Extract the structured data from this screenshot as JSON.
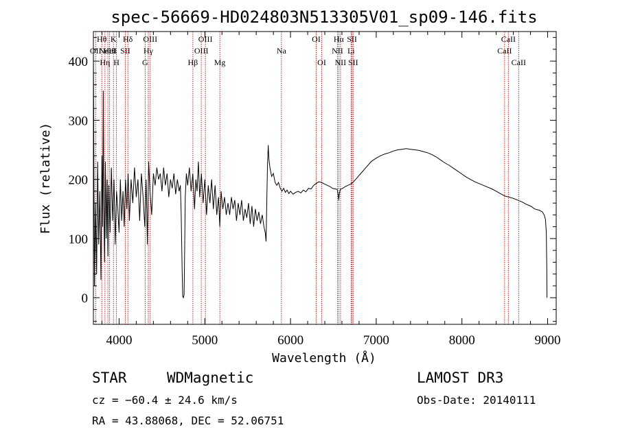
{
  "chart_data": {
    "type": "line",
    "title": "spec-56669-HD024803N513305V01_sp09-146.fits",
    "xlabel": "Wavelength (Å)",
    "ylabel": "Flux (relative)",
    "xlim": [
      3700,
      9100
    ],
    "ylim": [
      -45,
      450
    ],
    "x_ticks": [
      4000,
      5000,
      6000,
      7000,
      8000,
      9000
    ],
    "y_ticks": [
      0,
      100,
      200,
      300,
      400
    ],
    "series": [
      {
        "name": "flux",
        "points": [
          [
            3700,
            420
          ],
          [
            3712,
            20
          ],
          [
            3725,
            160
          ],
          [
            3738,
            40
          ],
          [
            3750,
            230
          ],
          [
            3762,
            90
          ],
          [
            3775,
            180
          ],
          [
            3788,
            30
          ],
          [
            3800,
            240
          ],
          [
            3808,
            120
          ],
          [
            3815,
            350
          ],
          [
            3822,
            160
          ],
          [
            3830,
            60
          ],
          [
            3840,
            230
          ],
          [
            3850,
            100
          ],
          [
            3860,
            200
          ],
          [
            3870,
            70
          ],
          [
            3880,
            190
          ],
          [
            3895,
            110
          ],
          [
            3910,
            220
          ],
          [
            3925,
            130
          ],
          [
            3940,
            200
          ],
          [
            3955,
            90
          ],
          [
            3970,
            180
          ],
          [
            3985,
            150
          ],
          [
            4000,
            110
          ],
          [
            4015,
            200
          ],
          [
            4030,
            130
          ],
          [
            4045,
            180
          ],
          [
            4060,
            120
          ],
          [
            4075,
            200
          ],
          [
            4090,
            150
          ],
          [
            4105,
            210
          ],
          [
            4120,
            130
          ],
          [
            4140,
            200
          ],
          [
            4160,
            160
          ],
          [
            4180,
            220
          ],
          [
            4200,
            170
          ],
          [
            4220,
            200
          ],
          [
            4240,
            130
          ],
          [
            4260,
            210
          ],
          [
            4280,
            170
          ],
          [
            4300,
            120
          ],
          [
            4315,
            200
          ],
          [
            4330,
            90
          ],
          [
            4345,
            230
          ],
          [
            4360,
            180
          ],
          [
            4380,
            140
          ],
          [
            4400,
            210
          ],
          [
            4420,
            190
          ],
          [
            4440,
            220
          ],
          [
            4460,
            200
          ],
          [
            4480,
            210
          ],
          [
            4500,
            180
          ],
          [
            4520,
            220
          ],
          [
            4540,
            190
          ],
          [
            4560,
            210
          ],
          [
            4580,
            170
          ],
          [
            4600,
            200
          ],
          [
            4620,
            185
          ],
          [
            4640,
            210
          ],
          [
            4660,
            175
          ],
          [
            4680,
            200
          ],
          [
            4700,
            180
          ],
          [
            4715,
            190
          ],
          [
            4725,
            140
          ],
          [
            4735,
            50
          ],
          [
            4742,
            2
          ],
          [
            4750,
            0
          ],
          [
            4758,
            5
          ],
          [
            4765,
            80
          ],
          [
            4772,
            170
          ],
          [
            4785,
            210
          ],
          [
            4800,
            190
          ],
          [
            4820,
            220
          ],
          [
            4840,
            180
          ],
          [
            4860,
            210
          ],
          [
            4880,
            150
          ],
          [
            4895,
            200
          ],
          [
            4910,
            180
          ],
          [
            4925,
            230
          ],
          [
            4940,
            170
          ],
          [
            4960,
            210
          ],
          [
            4980,
            160
          ],
          [
            5000,
            200
          ],
          [
            5020,
            140
          ],
          [
            5040,
            190
          ],
          [
            5060,
            160
          ],
          [
            5080,
            200
          ],
          [
            5100,
            150
          ],
          [
            5120,
            190
          ],
          [
            5140,
            140
          ],
          [
            5160,
            170
          ],
          [
            5175,
            120
          ],
          [
            5190,
            180
          ],
          [
            5210,
            150
          ],
          [
            5230,
            170
          ],
          [
            5250,
            140
          ],
          [
            5270,
            160
          ],
          [
            5290,
            140
          ],
          [
            5310,
            170
          ],
          [
            5330,
            150
          ],
          [
            5350,
            165
          ],
          [
            5370,
            130
          ],
          [
            5390,
            160
          ],
          [
            5410,
            140
          ],
          [
            5430,
            165
          ],
          [
            5450,
            130
          ],
          [
            5470,
            150
          ],
          [
            5490,
            135
          ],
          [
            5510,
            160
          ],
          [
            5530,
            125
          ],
          [
            5550,
            155
          ],
          [
            5570,
            120
          ],
          [
            5590,
            150
          ],
          [
            5610,
            130
          ],
          [
            5630,
            145
          ],
          [
            5650,
            125
          ],
          [
            5670,
            140
          ],
          [
            5690,
            120
          ],
          [
            5705,
            110
          ],
          [
            5715,
            95
          ],
          [
            5725,
            180
          ],
          [
            5732,
            225
          ],
          [
            5740,
            258
          ],
          [
            5748,
            235
          ],
          [
            5760,
            220
          ],
          [
            5780,
            205
          ],
          [
            5800,
            210
          ],
          [
            5820,
            195
          ],
          [
            5840,
            190
          ],
          [
            5860,
            195
          ],
          [
            5880,
            185
          ],
          [
            5900,
            180
          ],
          [
            5920,
            185
          ],
          [
            5940,
            178
          ],
          [
            5960,
            182
          ],
          [
            5980,
            176
          ],
          [
            6000,
            180
          ],
          [
            6030,
            175
          ],
          [
            6060,
            178
          ],
          [
            6090,
            180
          ],
          [
            6120,
            177
          ],
          [
            6150,
            182
          ],
          [
            6180,
            179
          ],
          [
            6210,
            185
          ],
          [
            6240,
            184
          ],
          [
            6270,
            190
          ],
          [
            6300,
            193
          ],
          [
            6330,
            196
          ],
          [
            6360,
            195
          ],
          [
            6400,
            192
          ],
          [
            6430,
            190
          ],
          [
            6460,
            188
          ],
          [
            6490,
            185
          ],
          [
            6520,
            184
          ],
          [
            6545,
            183
          ],
          [
            6555,
            175
          ],
          [
            6563,
            165
          ],
          [
            6570,
            175
          ],
          [
            6580,
            183
          ],
          [
            6610,
            185
          ],
          [
            6640,
            188
          ],
          [
            6670,
            190
          ],
          [
            6700,
            192
          ],
          [
            6730,
            195
          ],
          [
            6760,
            200
          ],
          [
            6790,
            205
          ],
          [
            6820,
            210
          ],
          [
            6850,
            215
          ],
          [
            6880,
            220
          ],
          [
            6910,
            225
          ],
          [
            6940,
            230
          ],
          [
            6970,
            233
          ],
          [
            7000,
            236
          ],
          [
            7050,
            240
          ],
          [
            7100,
            243
          ],
          [
            7150,
            245
          ],
          [
            7200,
            248
          ],
          [
            7250,
            250
          ],
          [
            7300,
            251
          ],
          [
            7350,
            252
          ],
          [
            7400,
            251
          ],
          [
            7450,
            250
          ],
          [
            7500,
            249
          ],
          [
            7550,
            247
          ],
          [
            7600,
            245
          ],
          [
            7650,
            242
          ],
          [
            7700,
            238
          ],
          [
            7750,
            233
          ],
          [
            7800,
            228
          ],
          [
            7850,
            224
          ],
          [
            7900,
            219
          ],
          [
            7950,
            214
          ],
          [
            8000,
            209
          ],
          [
            8050,
            204
          ],
          [
            8100,
            200
          ],
          [
            8150,
            196
          ],
          [
            8200,
            193
          ],
          [
            8250,
            190
          ],
          [
            8300,
            187
          ],
          [
            8350,
            184
          ],
          [
            8400,
            180
          ],
          [
            8450,
            176
          ],
          [
            8500,
            172
          ],
          [
            8550,
            170
          ],
          [
            8600,
            168
          ],
          [
            8650,
            165
          ],
          [
            8700,
            162
          ],
          [
            8750,
            158
          ],
          [
            8800,
            155
          ],
          [
            8850,
            150
          ],
          [
            8900,
            148
          ],
          [
            8940,
            145
          ],
          [
            8960,
            140
          ],
          [
            8975,
            132
          ],
          [
            8985,
            110
          ],
          [
            8990,
            50
          ],
          [
            8993,
            0
          ]
        ]
      }
    ],
    "line_markers": [
      {
        "wl": 3726,
        "label": "OII",
        "row": 1
      },
      {
        "wl": 3798,
        "label": "Hθ",
        "row": 0
      },
      {
        "wl": 3835,
        "label": "Hη",
        "row": 2
      },
      {
        "wl": 3869,
        "label": "NeIII",
        "row": 1
      },
      {
        "wl": 3889,
        "label": "HeI",
        "row": 1
      },
      {
        "wl": 3934,
        "label": "K",
        "row": 0
      },
      {
        "wl": 3969,
        "label": "H",
        "row": 2
      },
      {
        "wl": 4072,
        "label": "SII",
        "row": 1
      },
      {
        "wl": 4102,
        "label": "Hδ",
        "row": 0
      },
      {
        "wl": 4304,
        "label": "G",
        "row": 2
      },
      {
        "wl": 4341,
        "label": "Hγ",
        "row": 1
      },
      {
        "wl": 4363,
        "label": "OIII",
        "row": 0
      },
      {
        "wl": 4861,
        "label": "Hβ",
        "row": 2
      },
      {
        "wl": 4959,
        "label": "OIII",
        "row": 1
      },
      {
        "wl": 5007,
        "label": "OIII",
        "row": 0
      },
      {
        "wl": 5175,
        "label": "Mg",
        "row": 2
      },
      {
        "wl": 5894,
        "label": "Na",
        "row": 1
      },
      {
        "wl": 6300,
        "label": "OI",
        "row": 0
      },
      {
        "wl": 6364,
        "label": "OI",
        "row": 2
      },
      {
        "wl": 6548,
        "label": "NII",
        "row": 1
      },
      {
        "wl": 6563,
        "label": "Hα",
        "row": 0
      },
      {
        "wl": 6583,
        "label": "NII",
        "row": 2
      },
      {
        "wl": 6707,
        "label": "Li",
        "row": 1
      },
      {
        "wl": 6717,
        "label": "SII",
        "row": 0
      },
      {
        "wl": 6731,
        "label": "SII",
        "row": 2
      },
      {
        "wl": 8498,
        "label": "CaII",
        "row": 1
      },
      {
        "wl": 8542,
        "label": "CaII",
        "row": 0
      },
      {
        "wl": 8662,
        "label": "CaII",
        "row": 2
      }
    ]
  },
  "info": {
    "object_class": "STAR",
    "subclass": "WDMagnetic",
    "survey": "LAMOST DR3",
    "cz": "cz = −60.4 ± 24.6 km/s",
    "obs_date": "Obs-Date: 20140111",
    "coords": "RA =  43.88068, DEC =  52.06751"
  },
  "colors": {
    "line_marker": "#cc0000",
    "spectrum": "#000000",
    "axes": "#000000"
  }
}
